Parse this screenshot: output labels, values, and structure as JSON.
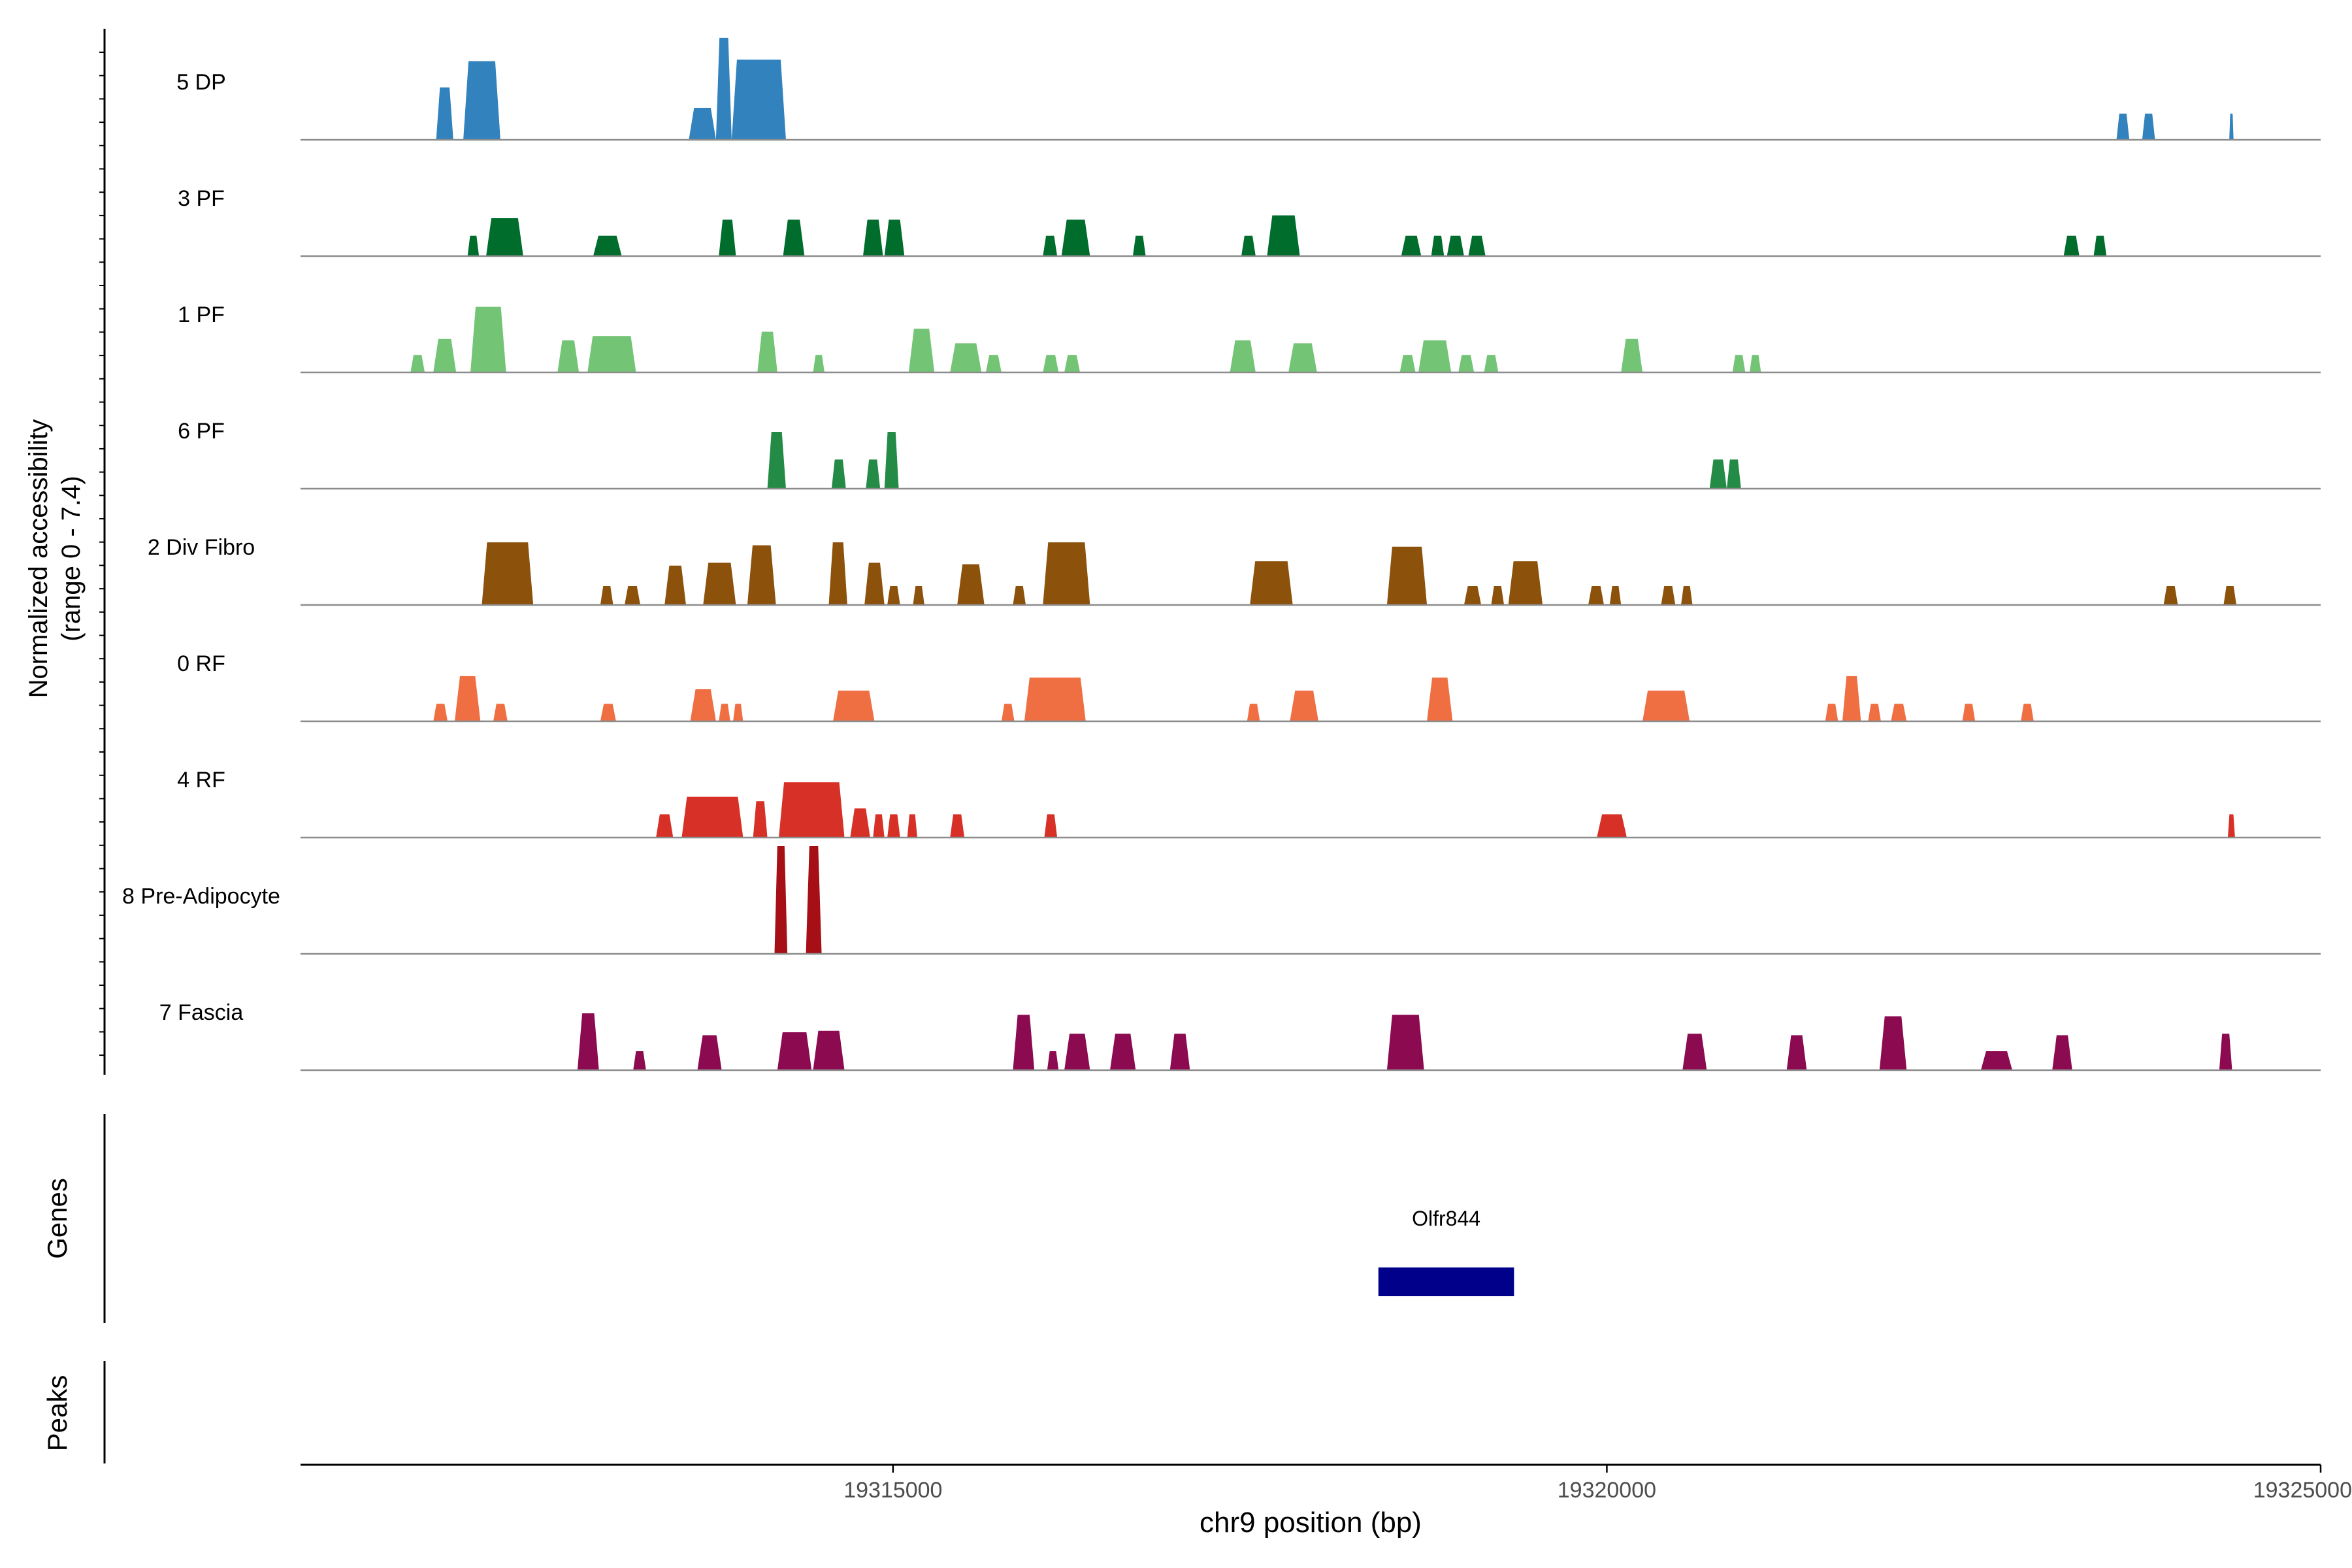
{
  "chart_data": {
    "type": "area",
    "title": "",
    "y_axis_label_line1": "Normalized accessibility",
    "y_axis_label_line2": "(range 0 - 7.4)",
    "xlabel": "chr9 position (bp)",
    "x_range": [
      19310850,
      19325000
    ],
    "y_range": [
      0,
      7.4
    ],
    "x_ticks": [
      {
        "value": 19315000,
        "label": "19315000"
      },
      {
        "value": 19320000,
        "label": "19320000"
      },
      {
        "value": 19325000,
        "label": "19325000"
      }
    ],
    "tracks": [
      {
        "name": "5 DP",
        "color": "#3182bd",
        "peaks": [
          [
            19311800,
            19311920,
            3.6
          ],
          [
            19311990,
            19312250,
            5.4
          ],
          [
            19313570,
            19313760,
            2.2
          ],
          [
            19313760,
            19313870,
            7.0
          ],
          [
            19313870,
            19314250,
            5.5
          ],
          [
            19323570,
            19323660,
            1.8
          ],
          [
            19323750,
            19323840,
            1.8
          ],
          [
            19324360,
            19324390,
            1.8
          ]
        ]
      },
      {
        "name": "3 PF",
        "color": "#006d2c",
        "peaks": [
          [
            19312020,
            19312100,
            1.4
          ],
          [
            19312150,
            19312410,
            2.6
          ],
          [
            19312900,
            19313100,
            1.4
          ],
          [
            19313780,
            19313900,
            2.5
          ],
          [
            19314230,
            19314380,
            2.5
          ],
          [
            19314790,
            19314930,
            2.5
          ],
          [
            19314940,
            19315080,
            2.5
          ],
          [
            19316050,
            19316150,
            1.4
          ],
          [
            19316180,
            19316380,
            2.5
          ],
          [
            19316680,
            19316770,
            1.4
          ],
          [
            19317440,
            19317540,
            1.4
          ],
          [
            19317620,
            19317850,
            2.8
          ],
          [
            19318560,
            19318700,
            1.4
          ],
          [
            19318770,
            19318860,
            1.4
          ],
          [
            19318880,
            19319000,
            1.4
          ],
          [
            19319030,
            19319150,
            1.4
          ],
          [
            19323200,
            19323310,
            1.4
          ],
          [
            19323410,
            19323500,
            1.4
          ]
        ]
      },
      {
        "name": "1 PF",
        "color": "#74c476",
        "peaks": [
          [
            19311620,
            19311720,
            1.2
          ],
          [
            19311780,
            19311940,
            2.3
          ],
          [
            19312040,
            19312290,
            4.5
          ],
          [
            19312650,
            19312800,
            2.2
          ],
          [
            19312860,
            19313200,
            2.5
          ],
          [
            19314050,
            19314190,
            2.8
          ],
          [
            19314440,
            19314520,
            1.2
          ],
          [
            19315110,
            19315290,
            3.0
          ],
          [
            19315400,
            19315620,
            2.0
          ],
          [
            19315650,
            19315760,
            1.2
          ],
          [
            19316050,
            19316160,
            1.2
          ],
          [
            19316200,
            19316310,
            1.2
          ],
          [
            19317360,
            19317540,
            2.2
          ],
          [
            19317770,
            19317970,
            2.0
          ],
          [
            19318550,
            19318660,
            1.2
          ],
          [
            19318680,
            19318910,
            2.2
          ],
          [
            19318960,
            19319070,
            1.2
          ],
          [
            19319140,
            19319240,
            1.2
          ],
          [
            19320100,
            19320250,
            2.3
          ],
          [
            19320880,
            19320970,
            1.2
          ],
          [
            19321000,
            19321080,
            1.2
          ]
        ]
      },
      {
        "name": "6 PF",
        "color": "#238b45",
        "peaks": [
          [
            19314120,
            19314250,
            3.9
          ],
          [
            19314570,
            19314670,
            2.0
          ],
          [
            19314810,
            19314910,
            2.0
          ],
          [
            19314940,
            19315040,
            3.9
          ],
          [
            19320720,
            19320840,
            2.0
          ],
          [
            19320840,
            19320940,
            2.0
          ]
        ]
      },
      {
        "name": "2 Div Fibro",
        "color": "#8c510a",
        "peaks": [
          [
            19312120,
            19312480,
            4.3
          ],
          [
            19312950,
            19313040,
            1.3
          ],
          [
            19313120,
            19313230,
            1.3
          ],
          [
            19313400,
            19313550,
            2.7
          ],
          [
            19313670,
            19313900,
            2.9
          ],
          [
            19313980,
            19314180,
            4.1
          ],
          [
            19314550,
            19314680,
            4.3
          ],
          [
            19314800,
            19314940,
            2.9
          ],
          [
            19314960,
            19315050,
            1.3
          ],
          [
            19315140,
            19315220,
            1.3
          ],
          [
            19315450,
            19315640,
            2.8
          ],
          [
            19315840,
            19315930,
            1.3
          ],
          [
            19316050,
            19316380,
            4.3
          ],
          [
            19317500,
            19317800,
            3.0
          ],
          [
            19318460,
            19318740,
            4.0
          ],
          [
            19319000,
            19319120,
            1.3
          ],
          [
            19319190,
            19319280,
            1.3
          ],
          [
            19319310,
            19319550,
            3.0
          ],
          [
            19319870,
            19319980,
            1.3
          ],
          [
            19320020,
            19320100,
            1.3
          ],
          [
            19320380,
            19320480,
            1.3
          ],
          [
            19320520,
            19320600,
            1.3
          ],
          [
            19323900,
            19324000,
            1.3
          ],
          [
            19324320,
            19324410,
            1.3
          ]
        ]
      },
      {
        "name": "0 RF",
        "color": "#ef6f42",
        "peaks": [
          [
            19311780,
            19311880,
            1.2
          ],
          [
            19311930,
            19312110,
            3.1
          ],
          [
            19312200,
            19312300,
            1.2
          ],
          [
            19312950,
            19313060,
            1.2
          ],
          [
            19313580,
            19313760,
            2.2
          ],
          [
            19313780,
            19313860,
            1.2
          ],
          [
            19313880,
            19313950,
            1.2
          ],
          [
            19314580,
            19314870,
            2.1
          ],
          [
            19315760,
            19315850,
            1.2
          ],
          [
            19315920,
            19316350,
            3.0
          ],
          [
            19317480,
            19317570,
            1.2
          ],
          [
            19317780,
            19317980,
            2.1
          ],
          [
            19318740,
            19318920,
            3.0
          ],
          [
            19320250,
            19320580,
            2.1
          ],
          [
            19321530,
            19321620,
            1.2
          ],
          [
            19321650,
            19321780,
            3.1
          ],
          [
            19321830,
            19321920,
            1.2
          ],
          [
            19321990,
            19322100,
            1.2
          ],
          [
            19322490,
            19322580,
            1.2
          ],
          [
            19322900,
            19322990,
            1.2
          ]
        ]
      },
      {
        "name": "4 RF",
        "color": "#d73027",
        "peaks": [
          [
            19313340,
            19313460,
            1.6
          ],
          [
            19313520,
            19313950,
            2.8
          ],
          [
            19314020,
            19314120,
            2.5
          ],
          [
            19314200,
            19314660,
            3.8
          ],
          [
            19314700,
            19314840,
            2.0
          ],
          [
            19314860,
            19314940,
            1.6
          ],
          [
            19314960,
            19315050,
            1.6
          ],
          [
            19315100,
            19315170,
            1.6
          ],
          [
            19315400,
            19315500,
            1.6
          ],
          [
            19316060,
            19316150,
            1.6
          ],
          [
            19319930,
            19320140,
            1.6
          ],
          [
            19324350,
            19324400,
            1.6
          ]
        ]
      },
      {
        "name": "8 Pre-Adipocyte",
        "color": "#a50f15",
        "peaks": [
          [
            19314170,
            19314260,
            7.4
          ],
          [
            19314390,
            19314500,
            7.4
          ]
        ]
      },
      {
        "name": "7 Fascia",
        "color": "#8b0a50",
        "peaks": [
          [
            19312790,
            19312940,
            3.9
          ],
          [
            19313180,
            19313270,
            1.3
          ],
          [
            19313630,
            19313800,
            2.4
          ],
          [
            19314190,
            19314430,
            2.6
          ],
          [
            19314440,
            19314660,
            2.7
          ],
          [
            19315840,
            19315990,
            3.8
          ],
          [
            19316080,
            19316160,
            1.3
          ],
          [
            19316200,
            19316380,
            2.5
          ],
          [
            19316520,
            19316700,
            2.5
          ],
          [
            19316940,
            19317080,
            2.5
          ],
          [
            19318460,
            19318720,
            3.8
          ],
          [
            19320530,
            19320700,
            2.5
          ],
          [
            19321260,
            19321400,
            2.4
          ],
          [
            19321910,
            19322100,
            3.7
          ],
          [
            19322620,
            19322840,
            1.3
          ],
          [
            19323120,
            19323260,
            2.4
          ],
          [
            19324290,
            19324380,
            2.5
          ]
        ]
      }
    ],
    "genes_panel_label": "Genes",
    "peaks_panel_label": "Peaks",
    "genes": [
      {
        "name": "Olfr844",
        "start": 19318400,
        "end": 19319350,
        "color": "#00008b"
      }
    ]
  }
}
